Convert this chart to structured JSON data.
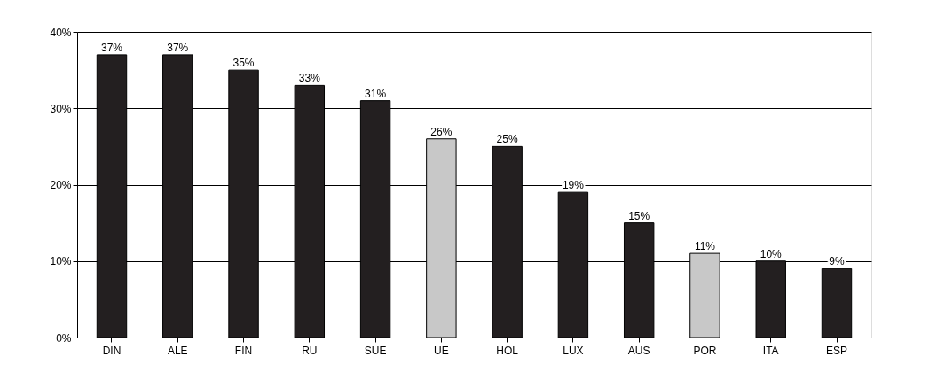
{
  "chart_data": {
    "type": "bar",
    "categories": [
      "DIN",
      "ALE",
      "FIN",
      "RU",
      "SUE",
      "UE",
      "HOL",
      "LUX",
      "AUS",
      "POR",
      "ITA",
      "ESP"
    ],
    "values": [
      37,
      37,
      35,
      33,
      31,
      26,
      25,
      19,
      15,
      11,
      10,
      9
    ],
    "colors": [
      "#231f20",
      "#231f20",
      "#231f20",
      "#231f20",
      "#231f20",
      "#c8c8c8",
      "#231f20",
      "#231f20",
      "#231f20",
      "#c8c8c8",
      "#231f20",
      "#231f20"
    ],
    "value_labels": [
      "37%",
      "37%",
      "35%",
      "33%",
      "31%",
      "26%",
      "25%",
      "19%",
      "15%",
      "11%",
      "10%",
      "9%"
    ],
    "ylim": [
      0,
      40
    ],
    "yticks": [
      {
        "value": 0,
        "label": "0%"
      },
      {
        "value": 10,
        "label": "10%"
      },
      {
        "value": 20,
        "label": "20%"
      },
      {
        "value": 30,
        "label": "30%"
      },
      {
        "value": 40,
        "label": "40%"
      }
    ],
    "grid": "y",
    "legend": false
  }
}
